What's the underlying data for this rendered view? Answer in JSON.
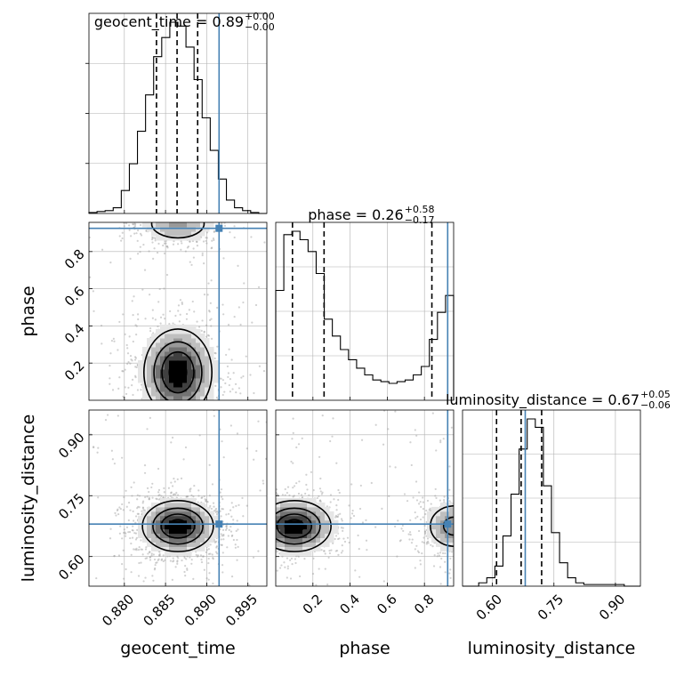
{
  "chart_data": {
    "type": "corner",
    "parameters": [
      "geocent_time",
      "phase",
      "luminosity_distance"
    ],
    "ranges": {
      "geocent_time": [
        0.8757,
        0.8973
      ],
      "phase": [
        0.0,
        0.957
      ],
      "luminosity_distance": [
        0.527,
        0.961
      ]
    },
    "injection": {
      "color": "#4682b4",
      "geocent_time": 0.8915,
      "phase": 0.925,
      "luminosity_distance": 0.68
    },
    "titles": [
      {
        "param": "geocent_time",
        "text": "geocent_time = 0.89",
        "sup": "+0.00",
        "sub": "−0.00"
      },
      {
        "param": "phase",
        "text": "phase = 0.26",
        "sup": "+0.58",
        "sub": "−0.17"
      },
      {
        "param": "luminosity_distance",
        "text": "luminosity_distance = 0.67",
        "sup": "+0.05",
        "sub": "−0.06"
      }
    ],
    "ticks": {
      "geocent_time": [
        "0.880",
        "0.885",
        "0.890",
        "0.895"
      ],
      "phase": [
        "0.2",
        "0.4",
        "0.6",
        "0.8"
      ],
      "luminosity_distance": [
        "0.60",
        "0.75",
        "0.90"
      ]
    },
    "quantiles": {
      "geocent_time": [
        0.8839,
        0.8864,
        0.8889
      ],
      "phase": [
        0.09,
        0.26,
        0.84
      ],
      "luminosity_distance": [
        0.61,
        0.67,
        0.72
      ]
    },
    "histograms": {
      "geocent_time": [
        0.005,
        0.01,
        0.015,
        0.03,
        0.12,
        0.26,
        0.43,
        0.62,
        0.82,
        0.92,
        1.0,
        0.98,
        0.87,
        0.7,
        0.5,
        0.33,
        0.18,
        0.07,
        0.03,
        0.015,
        0.005,
        0.0
      ],
      "phase": [
        0.65,
        0.98,
        1.0,
        0.95,
        0.88,
        0.75,
        0.48,
        0.38,
        0.3,
        0.24,
        0.19,
        0.15,
        0.12,
        0.11,
        0.1,
        0.11,
        0.12,
        0.15,
        0.2,
        0.36,
        0.52,
        0.62
      ],
      "luminosity_distance": [
        0.0,
        0.0,
        0.02,
        0.05,
        0.12,
        0.3,
        0.55,
        0.82,
        1.0,
        0.95,
        0.6,
        0.32,
        0.14,
        0.05,
        0.02,
        0.01,
        0.01,
        0.01,
        0.01,
        0.01,
        0.0,
        0.0
      ]
    },
    "density": {
      "geocent_time-phase": [
        {
          "x": 0.8865,
          "y": 0.15,
          "sx": 0.0023,
          "sy": 0.13,
          "w": 1.0
        },
        {
          "x": 0.8865,
          "y": 0.95,
          "sx": 0.0025,
          "sy": 0.06,
          "w": 0.45
        }
      ],
      "geocent_time-luminosity_distance": [
        {
          "x": 0.8865,
          "y": 0.675,
          "sx": 0.0024,
          "sy": 0.035,
          "w": 1.0
        }
      ],
      "phase-luminosity_distance": [
        {
          "x": 0.1,
          "y": 0.675,
          "sx": 0.11,
          "sy": 0.035,
          "w": 1.0
        },
        {
          "x": 0.96,
          "y": 0.675,
          "sx": 0.09,
          "sy": 0.035,
          "w": 0.55
        }
      ]
    },
    "xlabels": [
      "geocent_time",
      "phase",
      "luminosity_distance"
    ],
    "ylabels": [
      "phase",
      "luminosity_distance"
    ]
  }
}
